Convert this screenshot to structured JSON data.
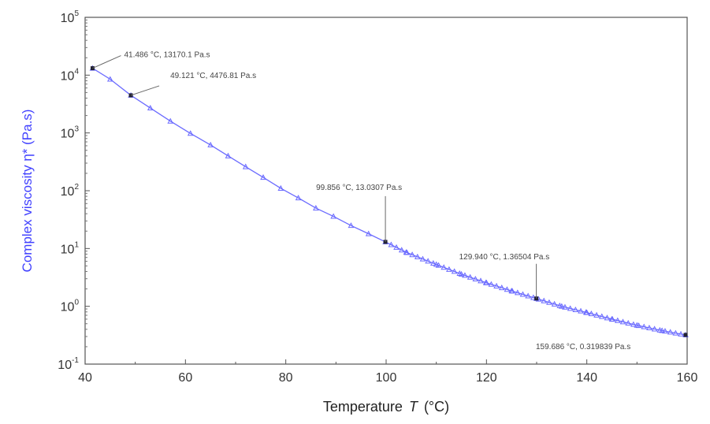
{
  "chart_data": {
    "type": "line",
    "xlabel": "Temperature",
    "xlabel_symbol": "T",
    "xlabel_unit": "(°C)",
    "ylabel": "Complex viscosity η* (Pa.s)",
    "xlim": [
      40,
      160
    ],
    "ylim": [
      0.1,
      100000
    ],
    "yscale": "log",
    "xticks": [
      "40",
      "60",
      "80",
      "100",
      "120",
      "140",
      "160"
    ],
    "xtick_values": [
      40,
      60,
      80,
      100,
      120,
      140,
      160
    ],
    "yticks": [
      {
        "base": "10",
        "exp": "5"
      },
      {
        "base": "10",
        "exp": "4"
      },
      {
        "base": "10",
        "exp": "3"
      },
      {
        "base": "10",
        "exp": "2"
      },
      {
        "base": "10",
        "exp": "1"
      },
      {
        "base": "10",
        "exp": "0"
      },
      {
        "base": "10",
        "exp": "-1"
      }
    ],
    "ytick_values": [
      100000,
      10000,
      1000,
      100,
      10,
      1,
      0.1
    ],
    "series": [
      {
        "name": "Complex viscosity",
        "color": "#6b6bff",
        "x": [
          41.486,
          45,
          49.121,
          53,
          57,
          61,
          65,
          68.5,
          72,
          75.5,
          79,
          82.5,
          86,
          89.5,
          93,
          96.5,
          99.856,
          104,
          110,
          115,
          120,
          125,
          129.94,
          135,
          140,
          145,
          150,
          155,
          159.686
        ],
        "y": [
          13170.1,
          8500,
          4476.81,
          2700,
          1600,
          980,
          620,
          400,
          260,
          170,
          110,
          75,
          50,
          36,
          25,
          18,
          13.0307,
          8.6,
          5.3,
          3.6,
          2.55,
          1.85,
          1.36504,
          1.0,
          0.78,
          0.6,
          0.47,
          0.38,
          0.319839
        ]
      }
    ],
    "annotations": [
      {
        "text": "41.486 °C, 13170.1 Pa.s",
        "x": 41.486,
        "y": 13170.1
      },
      {
        "text": "49.121 °C, 4476.81 Pa.s",
        "x": 49.121,
        "y": 4476.81
      },
      {
        "text": "99.856 °C, 13.0307 Pa.s",
        "x": 99.856,
        "y": 13.0307
      },
      {
        "text": "129.940 °C, 1.36504 Pa.s",
        "x": 129.94,
        "y": 1.36504
      },
      {
        "text": "159.686 °C, 0.319839 Pa.s",
        "x": 159.686,
        "y": 0.319839
      }
    ]
  }
}
